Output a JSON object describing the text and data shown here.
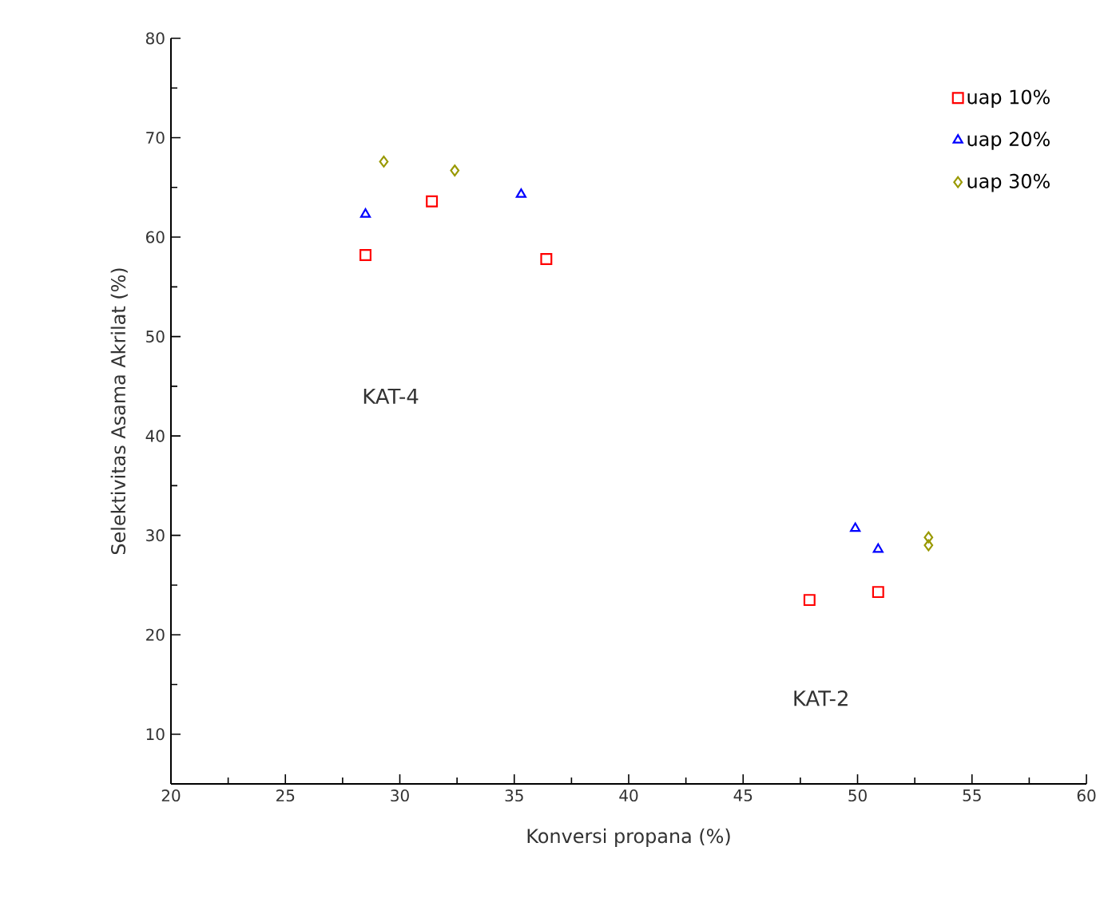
{
  "chart_data": {
    "type": "scatter",
    "xlabel": "Konversi propana   (%)",
    "ylabel": "Selektivitas Asama Akrilat   (%)",
    "xlim": [
      20,
      60
    ],
    "xticks": [
      20,
      25,
      30,
      35,
      40,
      45,
      50,
      55,
      60
    ],
    "ylim": [
      5,
      80
    ],
    "yticks": [
      10,
      20,
      30,
      40,
      50,
      60,
      70,
      80
    ],
    "grid": false,
    "legend": "top right",
    "series": [
      {
        "name": "uap 10%",
        "color": "#ff0000",
        "marker": "square",
        "x": [
          28.5,
          31.4,
          36.4,
          47.9,
          50.9
        ],
        "values": [
          58.2,
          63.6,
          57.8,
          23.5,
          24.3
        ]
      },
      {
        "name": "uap 20%",
        "color": "#0000ff",
        "marker": "triangle",
        "x": [
          28.5,
          35.3,
          49.9,
          50.9
        ],
        "values": [
          62.3,
          64.3,
          30.7,
          28.6
        ]
      },
      {
        "name": "uap 30%",
        "color": "#999900",
        "marker": "diamond",
        "x": [
          29.3,
          32.4,
          53.1,
          53.1
        ],
        "values": [
          67.6,
          66.7,
          29.8,
          29.0
        ]
      }
    ],
    "annotations": [
      "KAT-4",
      "KAT-2"
    ]
  }
}
